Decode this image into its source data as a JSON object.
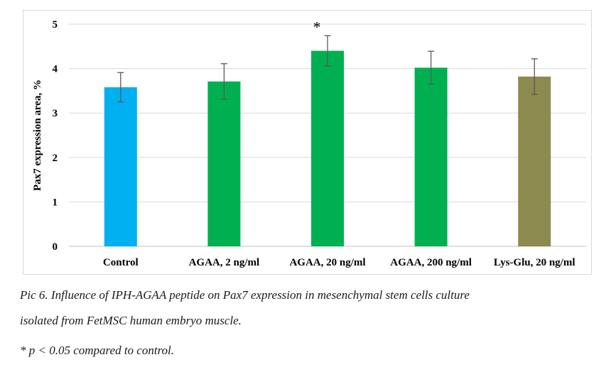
{
  "chart_data": {
    "type": "bar",
    "title": "",
    "xlabel": "",
    "ylabel": "Pax7 expression area, %",
    "ylim": [
      0,
      5
    ],
    "yticks": [
      "0",
      "1",
      "2",
      "3",
      "4",
      "5"
    ],
    "grid": true,
    "categories": [
      "Control",
      "AGAA, 2 ng/ml",
      "AGAA, 20 ng/ml",
      "AGAA, 200 ng/ml",
      "Lys-Glu, 20 ng/ml"
    ],
    "values": [
      3.58,
      3.71,
      4.4,
      4.02,
      3.82
    ],
    "errors": [
      0.33,
      0.4,
      0.34,
      0.37,
      0.4
    ],
    "colors": [
      "#00b0f0",
      "#00b050",
      "#00b050",
      "#00b050",
      "#8c8a4e"
    ],
    "annotations": [
      {
        "category": "AGAA, 20 ng/ml",
        "text": "*"
      }
    ]
  },
  "caption": {
    "line1": "Pic 6. Influence of IPH-AGAA peptide on Pax7 expression in mesenchymal stem cells culture",
    "line2": "isolated from FetMSC human embryo muscle.",
    "footnote": "* p < 0.05 compared to control."
  }
}
